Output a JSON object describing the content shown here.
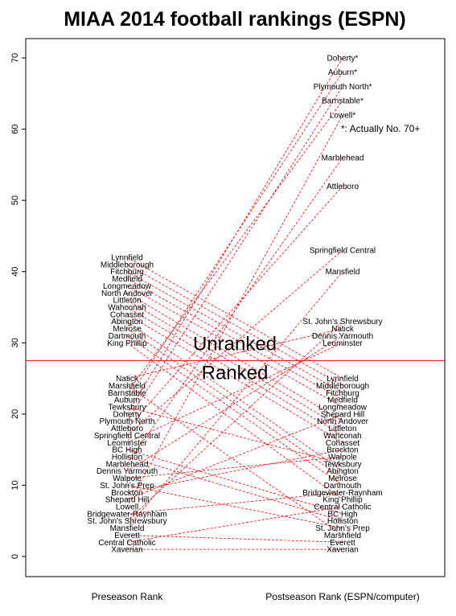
{
  "chart_data": {
    "type": "slope",
    "title": "MIAA 2014 football rankings (ESPN)",
    "xlabels": [
      "Preseason Rank",
      "Postseason Rank (ESPN/computer)"
    ],
    "ylim": [
      0,
      72
    ],
    "yticks": [
      0,
      10,
      20,
      30,
      40,
      50,
      60,
      70
    ],
    "threshold": 27.5,
    "threshold_labels": {
      "above": "Unranked",
      "below": "Ranked"
    },
    "footnote": "*: Actually No. 70+",
    "line_color": "#ff0000",
    "teams": [
      {
        "name": "Xaverian",
        "pre": 1,
        "post": 1,
        "post_label": "Xaverian"
      },
      {
        "name": "Central Catholic",
        "pre": 2,
        "post": 7,
        "post_label": "Central Catholic"
      },
      {
        "name": "Everett",
        "pre": 3,
        "post": 2,
        "post_label": "Everett"
      },
      {
        "name": "Mansfield",
        "pre": 4,
        "post": 40,
        "post_label": "Mansfield"
      },
      {
        "name": "St. John's Shrewsbury",
        "pre": 5,
        "post": 33,
        "post_label": "St. John's Shrewsbury"
      },
      {
        "name": "Bridgewater-Raynham",
        "pre": 6,
        "post": 9,
        "post_label": "Bridgewater-Raynham"
      },
      {
        "name": "Lowell",
        "pre": 7,
        "post": 62,
        "post_label": "Lowell*"
      },
      {
        "name": "Shepard Hill",
        "pre": 8,
        "post": 20,
        "post_label": "Shepard Hill"
      },
      {
        "name": "Brockton",
        "pre": 9,
        "post": 15,
        "post_label": "Brockton"
      },
      {
        "name": "St. John's Prep",
        "pre": 10,
        "post": 4,
        "post_label": "St. John's Prep"
      },
      {
        "name": "Walpole",
        "pre": 11,
        "post": 14,
        "post_label": "Walpole"
      },
      {
        "name": "Dennis Yarmouth",
        "pre": 12,
        "post": 31,
        "post_label": "Dennis Yarmouth"
      },
      {
        "name": "Marblehead",
        "pre": 13,
        "post": 56,
        "post_label": "Marblehead"
      },
      {
        "name": "Holliston",
        "pre": 14,
        "post": 5,
        "post_label": "Holliston"
      },
      {
        "name": "BC High",
        "pre": 15,
        "post": 6,
        "post_label": "BC High"
      },
      {
        "name": "Leominster",
        "pre": 16,
        "post": 30,
        "post_label": "Leominster"
      },
      {
        "name": "Springfield Central",
        "pre": 17,
        "post": 43,
        "post_label": "Springfield Central"
      },
      {
        "name": "Attleboro",
        "pre": 18,
        "post": 52,
        "post_label": "Attleboro"
      },
      {
        "name": "Plymouth North",
        "pre": 19,
        "post": 66,
        "post_label": "Plymouth North*"
      },
      {
        "name": "Doherty",
        "pre": 20,
        "post": 70,
        "post_label": "Doherty*"
      },
      {
        "name": "Tewksbury",
        "pre": 21,
        "post": 13,
        "post_label": "Tewksbury"
      },
      {
        "name": "Auburn",
        "pre": 22,
        "post": 68,
        "post_label": "Auburn*"
      },
      {
        "name": "Barnstable",
        "pre": 23,
        "post": 64,
        "post_label": "Barnstable*"
      },
      {
        "name": "Marshfield",
        "pre": 24,
        "post": 3,
        "post_label": "Marshfield"
      },
      {
        "name": "Natick",
        "pre": 25,
        "post": 32,
        "post_label": "Natick"
      },
      {
        "name": "King Phillip",
        "pre": 30,
        "post": 8,
        "post_label": "King Phillip"
      },
      {
        "name": "Dartmouth",
        "pre": 31,
        "post": 10,
        "post_label": "Dartmouth"
      },
      {
        "name": "Melrose",
        "pre": 32,
        "post": 11,
        "post_label": "Melrose"
      },
      {
        "name": "Abington",
        "pre": 33,
        "post": 12,
        "post_label": "Abington"
      },
      {
        "name": "Cohasset",
        "pre": 34,
        "post": 16,
        "post_label": "Cohasset"
      },
      {
        "name": "Wahconah",
        "pre": 35,
        "post": 17,
        "post_label": "Wahconah"
      },
      {
        "name": "Littleton",
        "pre": 36,
        "post": 18,
        "post_label": "Littleton"
      },
      {
        "name": "North Andover",
        "pre": 37,
        "post": 19,
        "post_label": "North Andover"
      },
      {
        "name": "Longmeadow",
        "pre": 38,
        "post": 21,
        "post_label": "Longmeadow"
      },
      {
        "name": "Medfield",
        "pre": 39,
        "post": 22,
        "post_label": "Medfield"
      },
      {
        "name": "Fitchburg",
        "pre": 40,
        "post": 23,
        "post_label": "Fitchburg"
      },
      {
        "name": "Middleborough",
        "pre": 41,
        "post": 24,
        "post_label": "Middleborough"
      },
      {
        "name": "Lynnfield",
        "pre": 42,
        "post": 25,
        "post_label": "Lynnfield"
      }
    ]
  }
}
